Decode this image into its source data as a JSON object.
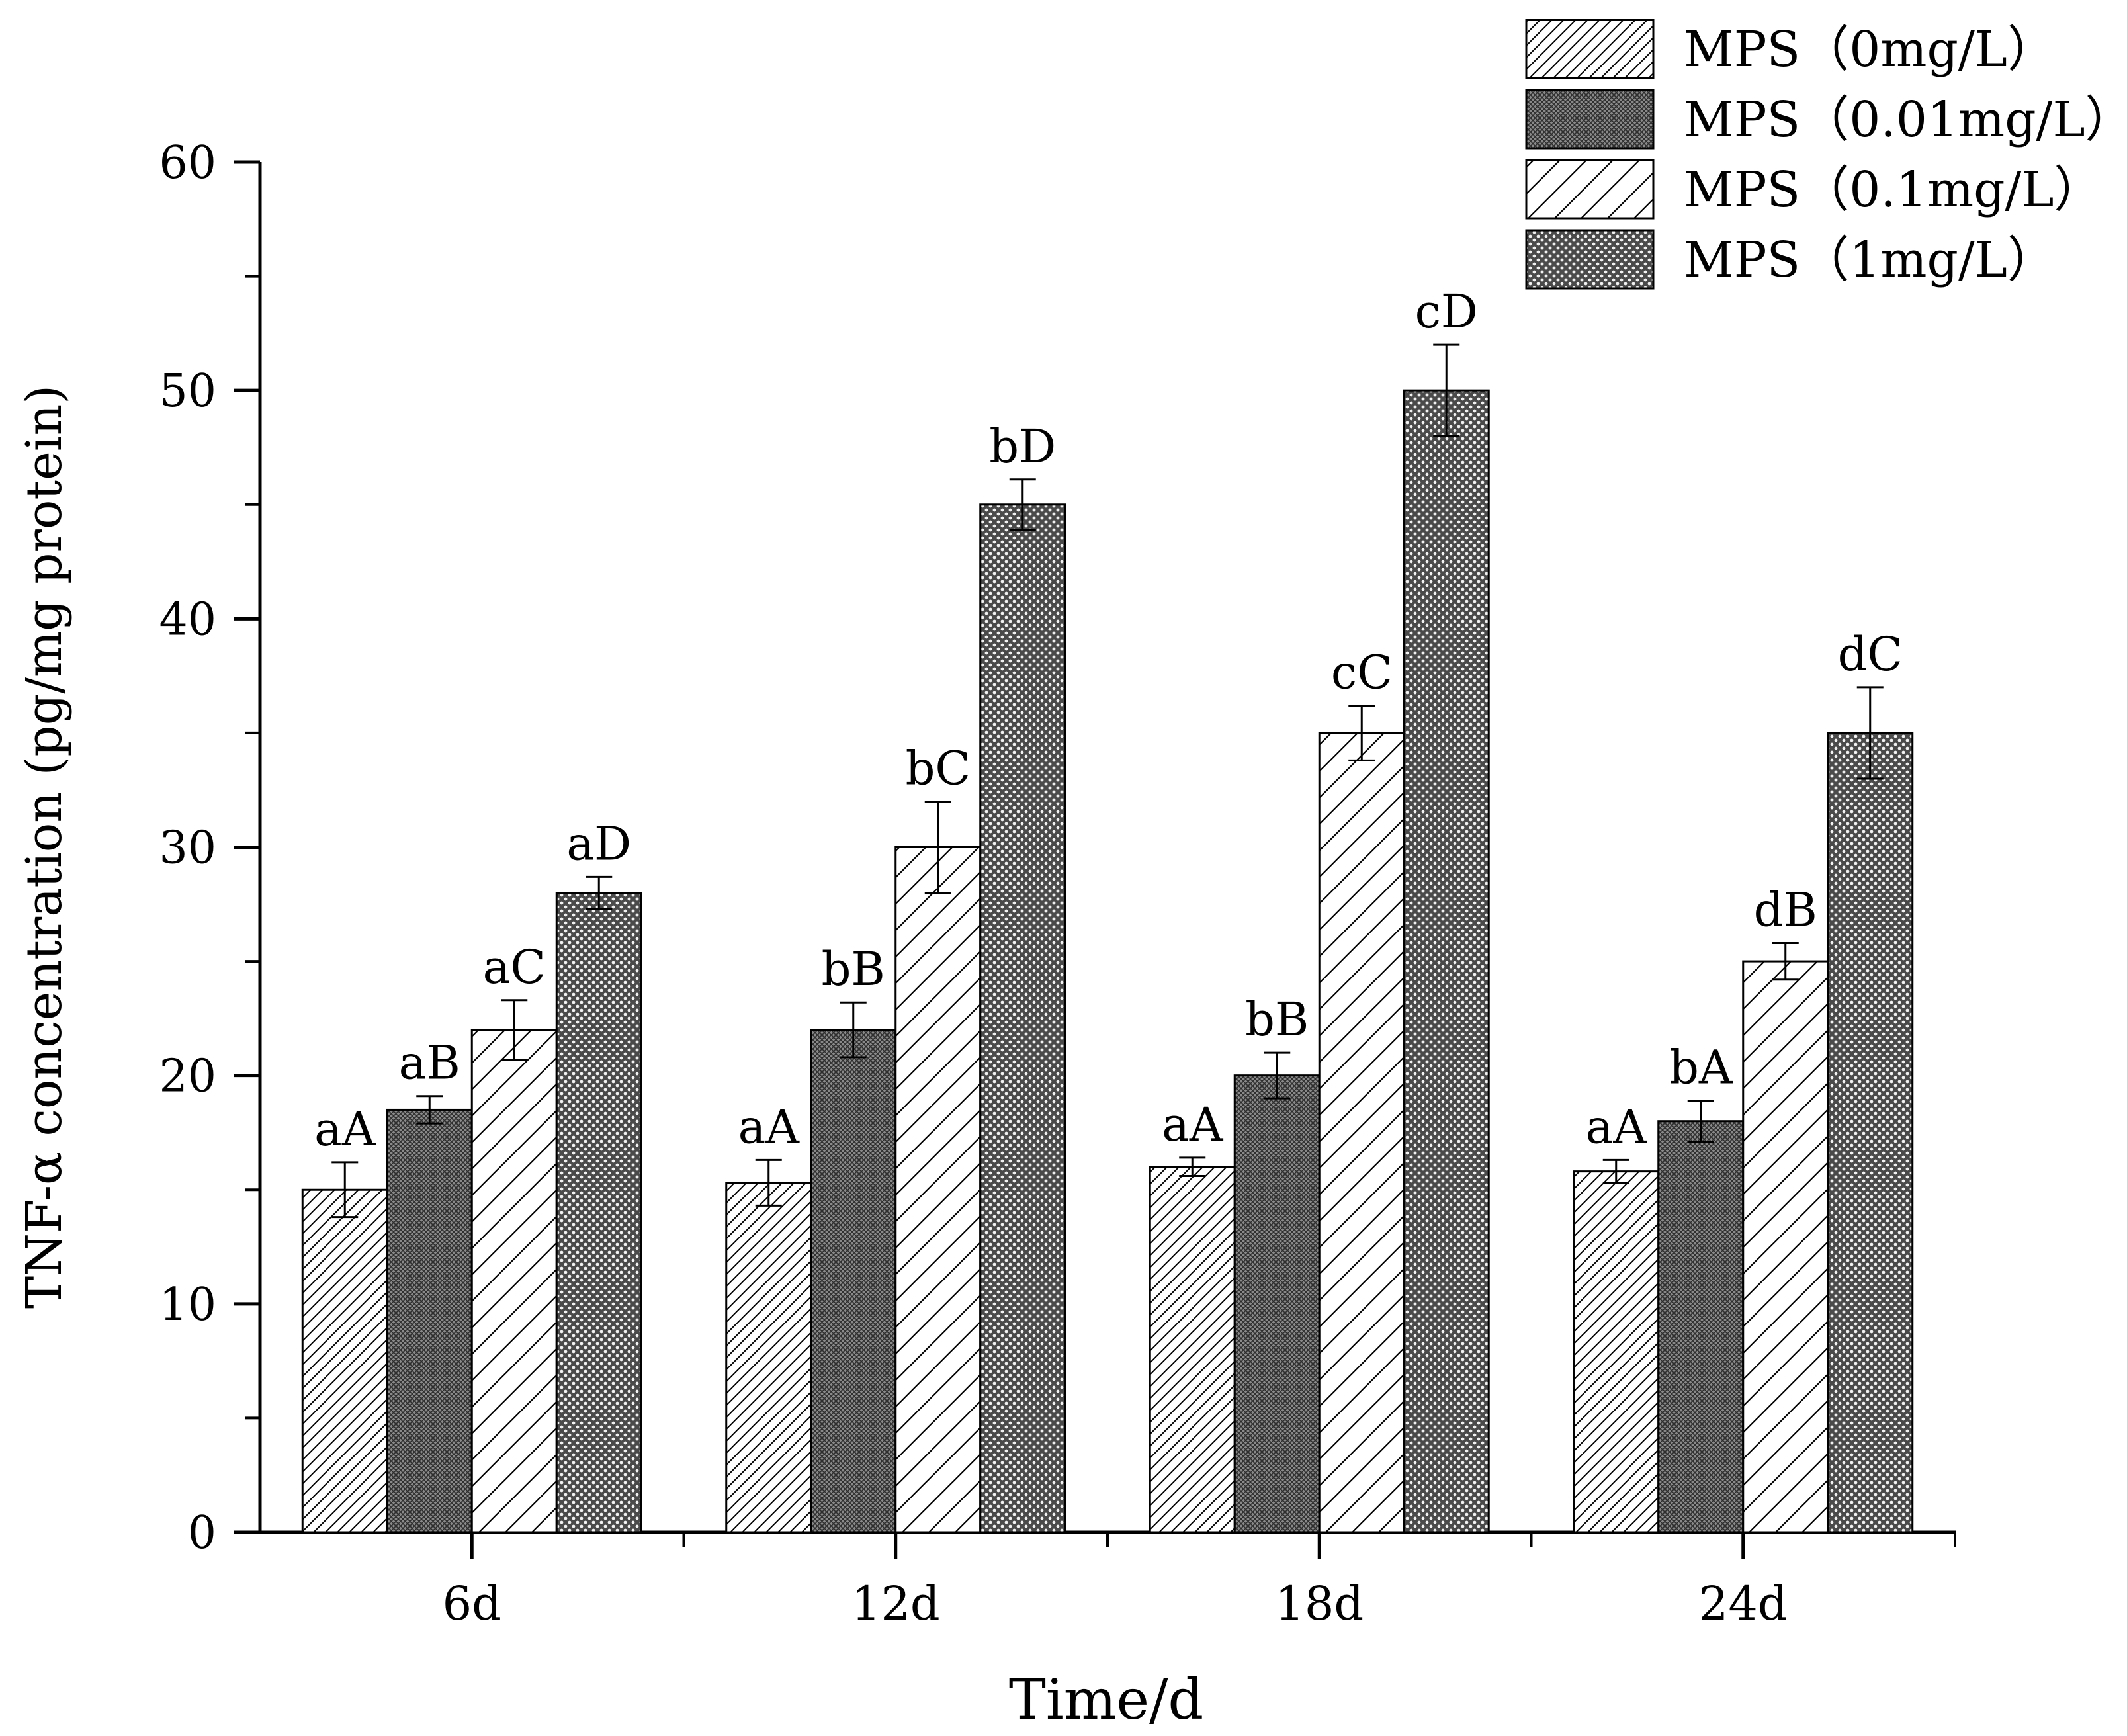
{
  "chart_data": {
    "type": "bar",
    "title": "",
    "xlabel": "Time/d",
    "ylabel": "TNF-α concentration (pg/mg protein)",
    "ylim": [
      0,
      60
    ],
    "yticks": [
      "0",
      "10",
      "20",
      "30",
      "40",
      "50",
      "60"
    ],
    "categories": [
      "6d",
      "12d",
      "18d",
      "24d"
    ],
    "grid": false,
    "legend_position": "top-right",
    "series": [
      {
        "name": "MPS（0mg/L）",
        "pattern": "fine-diagonal-hatch",
        "values": [
          15.0,
          15.3,
          16.0,
          15.8
        ],
        "errors": [
          1.2,
          1.0,
          0.4,
          0.5
        ],
        "labels": [
          "aA",
          "aA",
          "aA",
          "aA"
        ]
      },
      {
        "name": "MPS（0.01mg/L）",
        "pattern": "dense-crosshatch",
        "values": [
          18.5,
          22.0,
          20.0,
          18.0
        ],
        "errors": [
          0.6,
          1.2,
          1.0,
          0.9
        ],
        "labels": [
          "aB",
          "bB",
          "bB",
          "bA"
        ]
      },
      {
        "name": "MPS（0.1mg/L）",
        "pattern": "wide-diagonal-hatch",
        "values": [
          22.0,
          30.0,
          35.0,
          25.0
        ],
        "errors": [
          1.3,
          2.0,
          1.2,
          0.8
        ],
        "labels": [
          "aC",
          "bC",
          "cC",
          "dB"
        ]
      },
      {
        "name": "MPS（1mg/L）",
        "pattern": "dot-mesh",
        "values": [
          28.0,
          45.0,
          50.0,
          35.0
        ],
        "errors": [
          0.7,
          1.1,
          2.0,
          2.0
        ],
        "labels": [
          "aD",
          "bD",
          "cD",
          "dC"
        ]
      }
    ]
  }
}
